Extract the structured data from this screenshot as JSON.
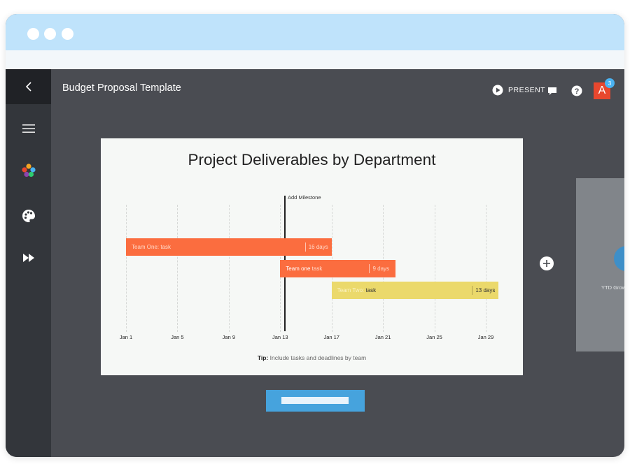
{
  "window": {
    "title": "Budget Proposal Template"
  },
  "toolbar": {
    "present_label": "PRESENT",
    "avatar_initial": "A",
    "notification_count": "3"
  },
  "sidebar": {
    "items": [
      {
        "name": "back",
        "icon": "chevron-left-icon"
      },
      {
        "name": "menu",
        "icon": "hamburger-icon"
      },
      {
        "name": "components",
        "icon": "colored-dots-icon"
      },
      {
        "name": "themes",
        "icon": "palette-icon"
      },
      {
        "name": "animations",
        "icon": "fast-forward-icon"
      }
    ]
  },
  "slide": {
    "title": "Project Deliverables by Department",
    "milestone_label": "Add Milestone",
    "tip_bold": "Tip:",
    "tip_text": " Include tasks and deadlines by team"
  },
  "chart_data": {
    "type": "gantt",
    "title": "Project Deliverables by Department",
    "x_ticks": [
      "Jan 1",
      "Jan 5",
      "Jan 9",
      "Jan 13",
      "Jan 17",
      "Jan 21",
      "Jan 25",
      "Jan 29"
    ],
    "x_range": [
      1,
      29
    ],
    "milestone": {
      "label": "Add Milestone",
      "day": 13.3
    },
    "tasks": [
      {
        "team": "Team One:",
        "task": "task",
        "start": 1,
        "end": 17,
        "duration": "16 days",
        "color": "#fb6d3f",
        "text_color": "#ffd9c9",
        "task_color": "#ffd9c9"
      },
      {
        "team": "Team one",
        "task": "task",
        "start": 13,
        "end": 22,
        "duration": "9 days",
        "color": "#fb6d3f",
        "text_color": "#ffffff",
        "task_color": "#ffd9c9"
      },
      {
        "team": "Team Two:",
        "task": "task",
        "start": 17,
        "end": 30,
        "duration": "13 days",
        "color": "#ebd96b",
        "text_color": "#faf3c4",
        "task_color": "#333333"
      }
    ]
  },
  "next_slide": {
    "label": "YTD Grow"
  },
  "colors": {
    "accent_blue": "#46a3dd",
    "avatar_red": "#e8472e",
    "workspace": "#4a4c52",
    "sidebar": "#33363b"
  }
}
